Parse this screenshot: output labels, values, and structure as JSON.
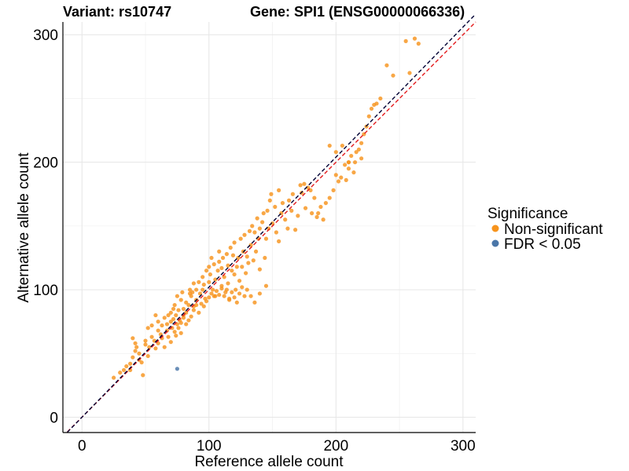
{
  "chart_data": {
    "type": "scatter",
    "title": "Variant: rs10747",
    "subtitle": "Gene: SPI1 (ENSG00000066336)",
    "xlabel": "Reference allele count",
    "ylabel": "Alternative allele count",
    "xlim": [
      -15,
      310
    ],
    "ylim": [
      -12,
      310
    ],
    "xticks": [
      0,
      100,
      200,
      300
    ],
    "yticks": [
      0,
      100,
      200,
      300
    ],
    "grid": true,
    "reference_lines": [
      {
        "slope": 1,
        "color": "#e41a1c",
        "style": "dashed"
      },
      {
        "slope": 1.02,
        "color": "#000033",
        "style": "dashed"
      }
    ],
    "legend": {
      "title": "Significance",
      "placement": "right",
      "entries": [
        {
          "label": "Non-significant",
          "color": "#f7941d"
        },
        {
          "label": "FDR < 0.05",
          "color": "#4a76a8"
        }
      ]
    },
    "series": [
      {
        "name": "Non-significant",
        "color": "#f7941d",
        "points": [
          [
            25,
            31
          ],
          [
            30,
            35
          ],
          [
            33,
            37
          ],
          [
            38,
            42
          ],
          [
            40,
            47
          ],
          [
            42,
            52
          ],
          [
            43,
            55
          ],
          [
            45,
            50
          ],
          [
            48,
            33
          ],
          [
            50,
            57
          ],
          [
            40,
            62
          ],
          [
            42,
            58
          ],
          [
            50,
            60
          ],
          [
            52,
            70
          ],
          [
            55,
            72
          ],
          [
            58,
            80
          ],
          [
            60,
            68
          ],
          [
            60,
            75
          ],
          [
            62,
            65
          ],
          [
            63,
            72
          ],
          [
            65,
            78
          ],
          [
            67,
            73
          ],
          [
            68,
            80
          ],
          [
            70,
            75
          ],
          [
            70,
            82
          ],
          [
            72,
            77
          ],
          [
            72,
            85
          ],
          [
            73,
            88
          ],
          [
            74,
            80
          ],
          [
            75,
            73
          ],
          [
            75,
            95
          ],
          [
            76,
            84
          ],
          [
            77,
            76
          ],
          [
            78,
            92
          ],
          [
            78,
            66
          ],
          [
            79,
            98
          ],
          [
            80,
            85
          ],
          [
            80,
            80
          ],
          [
            82,
            90
          ],
          [
            82,
            73
          ],
          [
            84,
            88
          ],
          [
            85,
            97
          ],
          [
            85,
            100
          ],
          [
            86,
            95
          ],
          [
            87,
            98
          ],
          [
            88,
            105
          ],
          [
            88,
            87
          ],
          [
            90,
            100
          ],
          [
            90,
            92
          ],
          [
            92,
            106
          ],
          [
            93,
            97
          ],
          [
            95,
            100
          ],
          [
            95,
            110
          ],
          [
            96,
            104
          ],
          [
            97,
            93
          ],
          [
            98,
            115
          ],
          [
            100,
            106
          ],
          [
            100,
            118
          ],
          [
            101,
            112
          ],
          [
            102,
            125
          ],
          [
            103,
            100
          ],
          [
            104,
            120
          ],
          [
            105,
            108
          ],
          [
            105,
            95
          ],
          [
            107,
            115
          ],
          [
            108,
            122
          ],
          [
            108,
            130
          ],
          [
            110,
            103
          ],
          [
            110,
            117
          ],
          [
            111,
            125
          ],
          [
            112,
            110
          ],
          [
            113,
            98
          ],
          [
            114,
            128
          ],
          [
            115,
            105
          ],
          [
            115,
            119
          ],
          [
            116,
            92
          ],
          [
            117,
            133
          ],
          [
            118,
            115
          ],
          [
            119,
            127
          ],
          [
            120,
            112
          ],
          [
            120,
            137
          ],
          [
            121,
            100
          ],
          [
            122,
            118
          ],
          [
            123,
            125
          ],
          [
            124,
            107
          ],
          [
            125,
            140
          ],
          [
            126,
            118
          ],
          [
            127,
            130
          ],
          [
            128,
            143
          ],
          [
            129,
            113
          ],
          [
            130,
            126
          ],
          [
            131,
            121
          ],
          [
            132,
            146
          ],
          [
            133,
            135
          ],
          [
            134,
            150
          ],
          [
            135,
            123
          ],
          [
            136,
            145
          ],
          [
            137,
            130
          ],
          [
            138,
            156
          ],
          [
            139,
            140
          ],
          [
            140,
            148
          ],
          [
            140,
            116
          ],
          [
            142,
            153
          ],
          [
            143,
            160
          ],
          [
            144,
            125
          ],
          [
            145,
            140
          ],
          [
            146,
            162
          ],
          [
            147,
            148
          ],
          [
            148,
            170
          ],
          [
            149,
            175
          ],
          [
            150,
            152
          ],
          [
            152,
            165
          ],
          [
            153,
            145
          ],
          [
            155,
            178
          ],
          [
            155,
            138
          ],
          [
            157,
            160
          ],
          [
            158,
            168
          ],
          [
            160,
            155
          ],
          [
            162,
            148
          ],
          [
            163,
            170
          ],
          [
            165,
            162
          ],
          [
            166,
            175
          ],
          [
            168,
            147
          ],
          [
            170,
            158
          ],
          [
            172,
            182
          ],
          [
            173,
            176
          ],
          [
            175,
            183
          ],
          [
            176,
            164
          ],
          [
            178,
            180
          ],
          [
            180,
            178
          ],
          [
            181,
            160
          ],
          [
            183,
            172
          ],
          [
            185,
            157
          ],
          [
            186,
            160
          ],
          [
            188,
            165
          ],
          [
            190,
            155
          ],
          [
            192,
            168
          ],
          [
            195,
            172
          ],
          [
            198,
            178
          ],
          [
            200,
            190
          ],
          [
            202,
            185
          ],
          [
            204,
            188
          ],
          [
            207,
            198
          ],
          [
            210,
            200
          ],
          [
            212,
            205
          ],
          [
            215,
            200
          ],
          [
            218,
            210
          ],
          [
            220,
            215
          ],
          [
            222,
            222
          ],
          [
            224,
            228
          ],
          [
            226,
            236
          ],
          [
            228,
            242
          ],
          [
            230,
            245
          ],
          [
            232,
            246
          ],
          [
            235,
            250
          ],
          [
            208,
            186
          ],
          [
            210,
            195
          ],
          [
            214,
            192
          ],
          [
            216,
            208
          ],
          [
            220,
            203
          ],
          [
            245,
            268
          ],
          [
            240,
            276
          ],
          [
            255,
            295
          ],
          [
            262,
            297
          ],
          [
            265,
            293
          ],
          [
            258,
            270
          ],
          [
            195,
            213
          ],
          [
            200,
            208
          ],
          [
            205,
            213
          ],
          [
            210,
            200
          ],
          [
            35,
            40
          ],
          [
            38,
            37
          ],
          [
            45,
            45
          ],
          [
            47,
            43
          ],
          [
            52,
            48
          ],
          [
            53,
            55
          ],
          [
            55,
            63
          ],
          [
            57,
            60
          ],
          [
            58,
            54
          ],
          [
            60,
            58
          ],
          [
            63,
            62
          ],
          [
            65,
            55
          ],
          [
            67,
            68
          ],
          [
            68,
            63
          ],
          [
            70,
            59
          ],
          [
            71,
            70
          ],
          [
            73,
            67
          ],
          [
            74,
            64
          ],
          [
            76,
            70
          ],
          [
            78,
            74
          ],
          [
            80,
            78
          ],
          [
            82,
            82
          ],
          [
            84,
            76
          ],
          [
            86,
            79
          ],
          [
            88,
            84
          ],
          [
            90,
            88
          ],
          [
            92,
            82
          ],
          [
            94,
            89
          ],
          [
            96,
            87
          ],
          [
            98,
            91
          ],
          [
            100,
            94
          ],
          [
            102,
            97
          ],
          [
            104,
            95
          ],
          [
            106,
            99
          ],
          [
            108,
            96
          ],
          [
            110,
            101
          ],
          [
            112,
            95
          ],
          [
            114,
            100
          ],
          [
            116,
            93
          ],
          [
            118,
            98
          ],
          [
            120,
            94
          ],
          [
            122,
            90
          ],
          [
            124,
            97
          ],
          [
            126,
            102
          ],
          [
            128,
            95
          ],
          [
            130,
            100
          ],
          [
            133,
            95
          ],
          [
            136,
            90
          ],
          [
            140,
            97
          ],
          [
            145,
            103
          ]
        ]
      },
      {
        "name": "FDR < 0.05",
        "color": "#4a76a8",
        "points": [
          [
            75,
            38
          ]
        ]
      }
    ]
  }
}
